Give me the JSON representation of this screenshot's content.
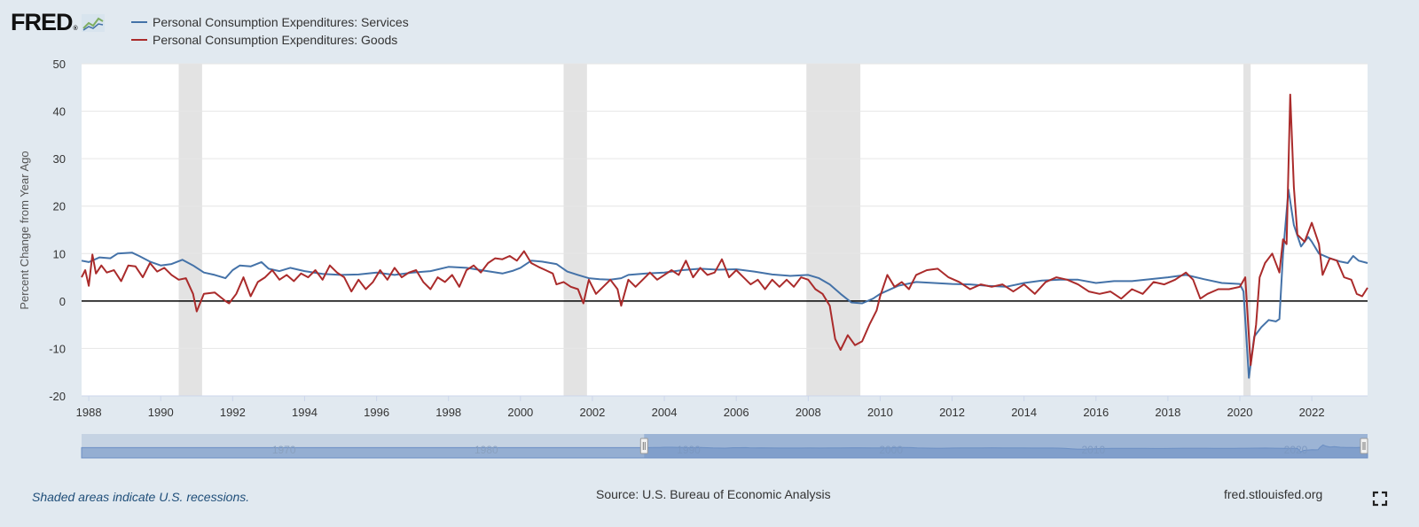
{
  "brand": {
    "logo_text": "FRED",
    "registered": "®"
  },
  "footer": {
    "recession_note": "Shaded areas indicate U.S. recessions.",
    "source": "Source: U.S. Bureau of Economic Analysis",
    "site": "fred.stlouisfed.org"
  },
  "colors": {
    "services": "#4472a8",
    "goods": "#aa2b2b",
    "recession": "#e3e3e3",
    "background": "#e1e9f0",
    "navigator": "#6b8fc4"
  },
  "chart_data": {
    "type": "line",
    "ylabel": "Percent Change from Year Ago",
    "xlabel": "",
    "x_range": [
      1987.8,
      2023.55
    ],
    "ylim": [
      -20,
      50
    ],
    "yticks": [
      -20,
      -10,
      0,
      10,
      20,
      30,
      40,
      50
    ],
    "xticks": [
      1988,
      1990,
      1992,
      1994,
      1996,
      1998,
      2000,
      2002,
      2004,
      2006,
      2008,
      2010,
      2012,
      2014,
      2016,
      2018,
      2020,
      2022
    ],
    "recessions": [
      [
        1990.5,
        1991.15
      ],
      [
        2001.2,
        2001.85
      ],
      [
        2007.95,
        2009.45
      ],
      [
        2020.1,
        2020.3
      ]
    ],
    "zero_line": true,
    "series": [
      {
        "name": "Personal Consumption Expenditures: Services",
        "color_key": "services",
        "points": [
          [
            1987.8,
            8.5
          ],
          [
            1988.0,
            8.2
          ],
          [
            1988.3,
            9.2
          ],
          [
            1988.6,
            9.0
          ],
          [
            1988.8,
            10.0
          ],
          [
            1989.2,
            10.2
          ],
          [
            1989.4,
            9.5
          ],
          [
            1989.7,
            8.3
          ],
          [
            1990.0,
            7.5
          ],
          [
            1990.3,
            7.8
          ],
          [
            1990.6,
            8.7
          ],
          [
            1990.9,
            7.5
          ],
          [
            1991.2,
            6.0
          ],
          [
            1991.5,
            5.5
          ],
          [
            1991.8,
            4.8
          ],
          [
            1992.0,
            6.5
          ],
          [
            1992.2,
            7.5
          ],
          [
            1992.5,
            7.3
          ],
          [
            1992.8,
            8.2
          ],
          [
            1993.0,
            6.8
          ],
          [
            1993.3,
            6.3
          ],
          [
            1993.6,
            7.0
          ],
          [
            1994.0,
            6.3
          ],
          [
            1994.5,
            5.7
          ],
          [
            1995.0,
            5.5
          ],
          [
            1995.5,
            5.6
          ],
          [
            1996.0,
            6.0
          ],
          [
            1996.5,
            5.5
          ],
          [
            1997.0,
            6.0
          ],
          [
            1997.5,
            6.3
          ],
          [
            1998.0,
            7.2
          ],
          [
            1998.5,
            7.0
          ],
          [
            1999.0,
            6.4
          ],
          [
            1999.5,
            5.8
          ],
          [
            1999.8,
            6.4
          ],
          [
            2000.0,
            7.0
          ],
          [
            2000.3,
            8.5
          ],
          [
            2000.6,
            8.3
          ],
          [
            2001.0,
            7.8
          ],
          [
            2001.3,
            6.2
          ],
          [
            2001.6,
            5.5
          ],
          [
            2001.9,
            4.8
          ],
          [
            2002.2,
            4.6
          ],
          [
            2002.5,
            4.5
          ],
          [
            2002.8,
            4.8
          ],
          [
            2003.0,
            5.5
          ],
          [
            2003.5,
            5.8
          ],
          [
            2004.0,
            6.0
          ],
          [
            2004.5,
            6.5
          ],
          [
            2005.0,
            6.8
          ],
          [
            2005.5,
            6.6
          ],
          [
            2006.0,
            6.7
          ],
          [
            2006.5,
            6.2
          ],
          [
            2007.0,
            5.6
          ],
          [
            2007.5,
            5.3
          ],
          [
            2008.0,
            5.5
          ],
          [
            2008.3,
            4.8
          ],
          [
            2008.6,
            3.5
          ],
          [
            2008.9,
            1.5
          ],
          [
            2009.2,
            -0.3
          ],
          [
            2009.5,
            -0.5
          ],
          [
            2009.8,
            0.5
          ],
          [
            2010.0,
            1.5
          ],
          [
            2010.5,
            3.2
          ],
          [
            2011.0,
            4.0
          ],
          [
            2011.5,
            3.8
          ],
          [
            2012.0,
            3.6
          ],
          [
            2012.5,
            3.5
          ],
          [
            2013.0,
            3.2
          ],
          [
            2013.5,
            3.0
          ],
          [
            2014.0,
            3.8
          ],
          [
            2014.5,
            4.3
          ],
          [
            2015.0,
            4.5
          ],
          [
            2015.5,
            4.5
          ],
          [
            2016.0,
            3.8
          ],
          [
            2016.5,
            4.2
          ],
          [
            2017.0,
            4.2
          ],
          [
            2017.5,
            4.6
          ],
          [
            2018.0,
            5.0
          ],
          [
            2018.5,
            5.5
          ],
          [
            2019.0,
            4.6
          ],
          [
            2019.5,
            3.8
          ],
          [
            2020.0,
            3.6
          ],
          [
            2020.1,
            2.0
          ],
          [
            2020.25,
            -16.2
          ],
          [
            2020.4,
            -7.5
          ],
          [
            2020.6,
            -5.5
          ],
          [
            2020.8,
            -4.0
          ],
          [
            2021.0,
            -4.3
          ],
          [
            2021.1,
            -3.8
          ],
          [
            2021.2,
            10.0
          ],
          [
            2021.35,
            23.5
          ],
          [
            2021.5,
            16.0
          ],
          [
            2021.7,
            11.5
          ],
          [
            2021.9,
            13.5
          ],
          [
            2022.0,
            12.5
          ],
          [
            2022.2,
            10.0
          ],
          [
            2022.5,
            9.0
          ],
          [
            2022.8,
            8.3
          ],
          [
            2023.0,
            8.0
          ],
          [
            2023.15,
            9.5
          ],
          [
            2023.3,
            8.5
          ],
          [
            2023.55,
            8.0
          ]
        ]
      },
      {
        "name": "Personal Consumption Expenditures: Goods",
        "color_key": "goods",
        "points": [
          [
            1987.8,
            5.0
          ],
          [
            1987.9,
            6.5
          ],
          [
            1988.0,
            3.2
          ],
          [
            1988.1,
            9.8
          ],
          [
            1988.2,
            5.8
          ],
          [
            1988.35,
            7.5
          ],
          [
            1988.5,
            6.0
          ],
          [
            1988.7,
            6.5
          ],
          [
            1988.9,
            4.2
          ],
          [
            1989.1,
            7.5
          ],
          [
            1989.3,
            7.3
          ],
          [
            1989.5,
            5.0
          ],
          [
            1989.7,
            8.0
          ],
          [
            1989.9,
            6.2
          ],
          [
            1990.1,
            7.0
          ],
          [
            1990.3,
            5.5
          ],
          [
            1990.5,
            4.5
          ],
          [
            1990.7,
            4.8
          ],
          [
            1990.9,
            1.5
          ],
          [
            1991.0,
            -2.2
          ],
          [
            1991.2,
            1.5
          ],
          [
            1991.5,
            1.8
          ],
          [
            1991.8,
            0.0
          ],
          [
            1991.9,
            -0.5
          ],
          [
            1992.1,
            1.5
          ],
          [
            1992.3,
            5.0
          ],
          [
            1992.5,
            1.0
          ],
          [
            1992.7,
            4.0
          ],
          [
            1992.9,
            5.0
          ],
          [
            1993.1,
            6.5
          ],
          [
            1993.3,
            4.5
          ],
          [
            1993.5,
            5.5
          ],
          [
            1993.7,
            4.2
          ],
          [
            1993.9,
            5.8
          ],
          [
            1994.1,
            5.0
          ],
          [
            1994.3,
            6.5
          ],
          [
            1994.5,
            4.5
          ],
          [
            1994.7,
            7.5
          ],
          [
            1994.9,
            6.0
          ],
          [
            1995.1,
            5.0
          ],
          [
            1995.3,
            2.0
          ],
          [
            1995.5,
            4.5
          ],
          [
            1995.7,
            2.5
          ],
          [
            1995.9,
            4.0
          ],
          [
            1996.1,
            6.5
          ],
          [
            1996.3,
            4.5
          ],
          [
            1996.5,
            7.0
          ],
          [
            1996.7,
            5.0
          ],
          [
            1996.9,
            6.0
          ],
          [
            1997.1,
            6.5
          ],
          [
            1997.3,
            4.0
          ],
          [
            1997.5,
            2.5
          ],
          [
            1997.7,
            5.0
          ],
          [
            1997.9,
            4.0
          ],
          [
            1998.1,
            5.5
          ],
          [
            1998.3,
            3.0
          ],
          [
            1998.5,
            6.5
          ],
          [
            1998.7,
            7.5
          ],
          [
            1998.9,
            6.0
          ],
          [
            1999.1,
            8.0
          ],
          [
            1999.3,
            9.0
          ],
          [
            1999.5,
            8.8
          ],
          [
            1999.7,
            9.5
          ],
          [
            1999.9,
            8.5
          ],
          [
            2000.1,
            10.5
          ],
          [
            2000.3,
            8.0
          ],
          [
            2000.5,
            7.2
          ],
          [
            2000.7,
            6.5
          ],
          [
            2000.9,
            5.8
          ],
          [
            2001.0,
            3.5
          ],
          [
            2001.2,
            4.0
          ],
          [
            2001.4,
            3.0
          ],
          [
            2001.6,
            2.5
          ],
          [
            2001.75,
            -0.5
          ],
          [
            2001.9,
            4.5
          ],
          [
            2002.1,
            1.5
          ],
          [
            2002.3,
            3.0
          ],
          [
            2002.5,
            4.5
          ],
          [
            2002.7,
            2.5
          ],
          [
            2002.8,
            -1.0
          ],
          [
            2003.0,
            4.5
          ],
          [
            2003.2,
            3.0
          ],
          [
            2003.4,
            4.5
          ],
          [
            2003.6,
            6.0
          ],
          [
            2003.8,
            4.5
          ],
          [
            2004.0,
            5.5
          ],
          [
            2004.2,
            6.5
          ],
          [
            2004.4,
            5.5
          ],
          [
            2004.6,
            8.5
          ],
          [
            2004.8,
            5.0
          ],
          [
            2005.0,
            7.0
          ],
          [
            2005.2,
            5.5
          ],
          [
            2005.4,
            6.0
          ],
          [
            2005.6,
            8.8
          ],
          [
            2005.8,
            5.0
          ],
          [
            2006.0,
            6.5
          ],
          [
            2006.2,
            5.0
          ],
          [
            2006.4,
            3.5
          ],
          [
            2006.6,
            4.5
          ],
          [
            2006.8,
            2.5
          ],
          [
            2007.0,
            4.5
          ],
          [
            2007.2,
            3.0
          ],
          [
            2007.4,
            4.5
          ],
          [
            2007.6,
            3.0
          ],
          [
            2007.8,
            5.0
          ],
          [
            2008.0,
            4.5
          ],
          [
            2008.2,
            2.5
          ],
          [
            2008.4,
            1.5
          ],
          [
            2008.6,
            -1.0
          ],
          [
            2008.75,
            -8.0
          ],
          [
            2008.9,
            -10.3
          ],
          [
            2009.1,
            -7.2
          ],
          [
            2009.3,
            -9.3
          ],
          [
            2009.5,
            -8.5
          ],
          [
            2009.7,
            -5.0
          ],
          [
            2009.9,
            -2.0
          ],
          [
            2010.0,
            1.0
          ],
          [
            2010.2,
            5.5
          ],
          [
            2010.4,
            3.0
          ],
          [
            2010.6,
            4.0
          ],
          [
            2010.8,
            2.5
          ],
          [
            2011.0,
            5.5
          ],
          [
            2011.3,
            6.5
          ],
          [
            2011.6,
            6.8
          ],
          [
            2011.9,
            5.0
          ],
          [
            2012.2,
            4.0
          ],
          [
            2012.5,
            2.5
          ],
          [
            2012.8,
            3.5
          ],
          [
            2013.1,
            3.0
          ],
          [
            2013.4,
            3.5
          ],
          [
            2013.7,
            2.0
          ],
          [
            2014.0,
            3.5
          ],
          [
            2014.3,
            1.5
          ],
          [
            2014.6,
            4.0
          ],
          [
            2014.9,
            5.0
          ],
          [
            2015.2,
            4.5
          ],
          [
            2015.5,
            3.5
          ],
          [
            2015.8,
            2.0
          ],
          [
            2016.1,
            1.5
          ],
          [
            2016.4,
            2.0
          ],
          [
            2016.7,
            0.5
          ],
          [
            2017.0,
            2.5
          ],
          [
            2017.3,
            1.5
          ],
          [
            2017.6,
            4.0
          ],
          [
            2017.9,
            3.5
          ],
          [
            2018.2,
            4.5
          ],
          [
            2018.5,
            6.0
          ],
          [
            2018.7,
            4.5
          ],
          [
            2018.9,
            0.5
          ],
          [
            2019.1,
            1.5
          ],
          [
            2019.4,
            2.5
          ],
          [
            2019.7,
            2.5
          ],
          [
            2020.0,
            3.0
          ],
          [
            2020.15,
            5.0
          ],
          [
            2020.3,
            -13.5
          ],
          [
            2020.45,
            -5.0
          ],
          [
            2020.55,
            5.0
          ],
          [
            2020.7,
            8.0
          ],
          [
            2020.9,
            10.0
          ],
          [
            2021.1,
            6.0
          ],
          [
            2021.2,
            13.0
          ],
          [
            2021.3,
            12.0
          ],
          [
            2021.4,
            43.5
          ],
          [
            2021.5,
            24.0
          ],
          [
            2021.6,
            14.0
          ],
          [
            2021.8,
            12.5
          ],
          [
            2022.0,
            16.5
          ],
          [
            2022.2,
            12.0
          ],
          [
            2022.3,
            5.5
          ],
          [
            2022.5,
            9.0
          ],
          [
            2022.7,
            8.5
          ],
          [
            2022.9,
            5.0
          ],
          [
            2023.1,
            4.5
          ],
          [
            2023.25,
            1.5
          ],
          [
            2023.4,
            1.0
          ],
          [
            2023.55,
            2.8
          ]
        ]
      }
    ],
    "navigator": {
      "tick_labels": [
        "1970",
        "1980",
        "1990",
        "2000",
        "2010",
        "2020"
      ],
      "window": [
        1987.8,
        2023.55
      ],
      "x_range": [
        1960,
        2023.55
      ]
    }
  }
}
